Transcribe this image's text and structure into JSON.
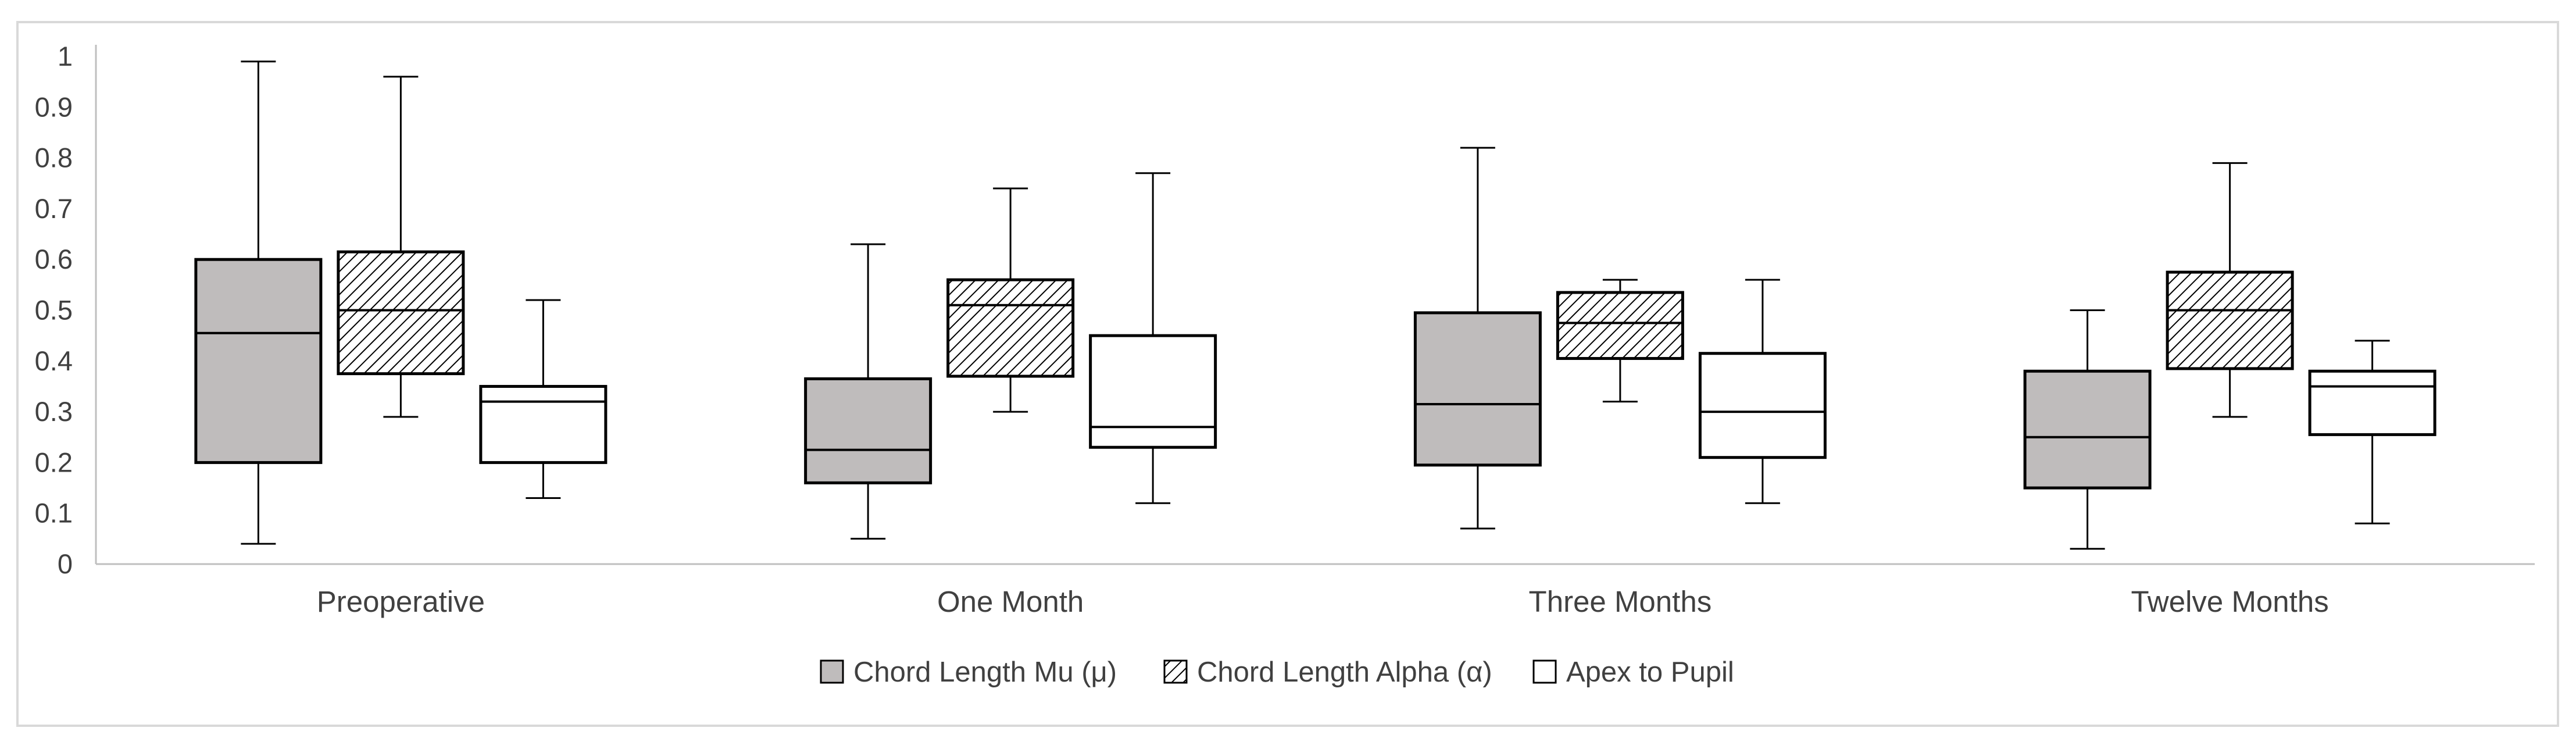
{
  "chart_data": {
    "type": "boxplot",
    "title": "",
    "xlabel": "",
    "ylabel": "",
    "ylim": [
      0,
      1
    ],
    "yticks": [
      "0",
      "0.1",
      "0.2",
      "0.3",
      "0.4",
      "0.5",
      "0.6",
      "0.7",
      "0.8",
      "0.9",
      "1"
    ],
    "grid": false,
    "legend_position": "bottom",
    "categories": [
      "Preoperative",
      "One Month",
      "Three Months",
      "Twelve Months"
    ],
    "series": [
      {
        "name": "Chord Length Mu (μ)",
        "fill": "#bfbcbc",
        "pattern": "solid",
        "boxes": [
          {
            "min": 0.04,
            "q1": 0.2,
            "median": 0.455,
            "q3": 0.6,
            "max": 0.99
          },
          {
            "min": 0.05,
            "q1": 0.16,
            "median": 0.225,
            "q3": 0.365,
            "max": 0.63
          },
          {
            "min": 0.07,
            "q1": 0.195,
            "median": 0.315,
            "q3": 0.495,
            "max": 0.82
          },
          {
            "min": 0.03,
            "q1": 0.15,
            "median": 0.25,
            "q3": 0.38,
            "max": 0.5
          }
        ]
      },
      {
        "name": "Chord Length Alpha (α)",
        "fill": "#d9d9d9",
        "pattern": "hatched",
        "boxes": [
          {
            "min": 0.29,
            "q1": 0.375,
            "median": 0.5,
            "q3": 0.615,
            "max": 0.96
          },
          {
            "min": 0.3,
            "q1": 0.37,
            "median": 0.51,
            "q3": 0.56,
            "max": 0.74
          },
          {
            "min": 0.32,
            "q1": 0.405,
            "median": 0.475,
            "q3": 0.535,
            "max": 0.56
          },
          {
            "min": 0.29,
            "q1": 0.385,
            "median": 0.5,
            "q3": 0.575,
            "max": 0.79
          }
        ]
      },
      {
        "name": "Apex to Pupil",
        "fill": "#ffffff",
        "pattern": "solid",
        "boxes": [
          {
            "min": 0.13,
            "q1": 0.2,
            "median": 0.32,
            "q3": 0.35,
            "max": 0.52
          },
          {
            "min": 0.12,
            "q1": 0.23,
            "median": 0.27,
            "q3": 0.45,
            "max": 0.77
          },
          {
            "min": 0.12,
            "q1": 0.21,
            "median": 0.3,
            "q3": 0.415,
            "max": 0.56
          },
          {
            "min": 0.08,
            "q1": 0.255,
            "median": 0.35,
            "q3": 0.38,
            "max": 0.44
          }
        ]
      }
    ],
    "colors": {
      "axis": "#bfbfbf",
      "outline": "#000000",
      "text": "#404040",
      "frame": "#d9d9d9"
    }
  }
}
